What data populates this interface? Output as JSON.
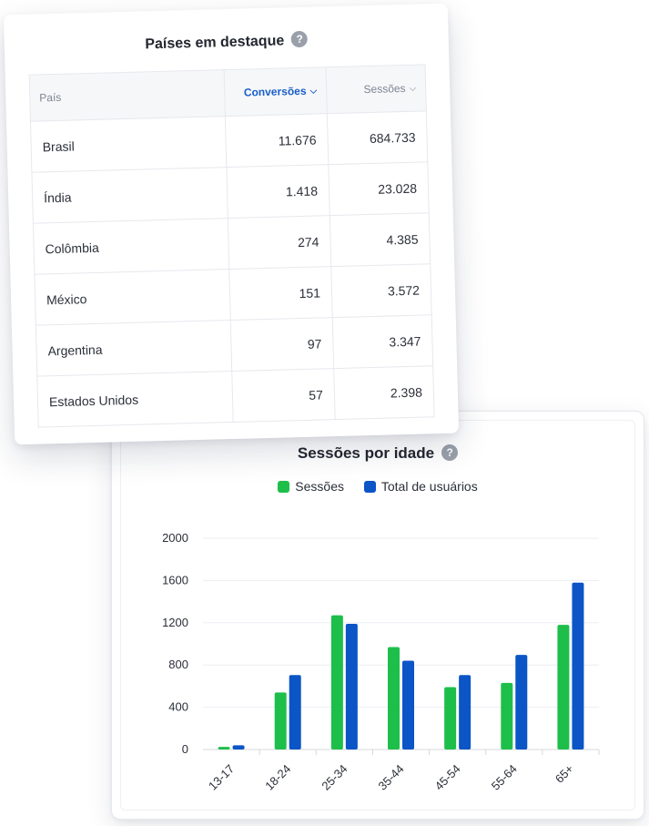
{
  "table_card": {
    "title": "Países em destaque",
    "help_icon": "question-circle-icon",
    "columns": {
      "country": "País",
      "conversions": "Conversões",
      "sessions": "Sessões"
    },
    "rows": [
      {
        "country": "Brasil",
        "conversions": "11.676",
        "sessions": "684.733"
      },
      {
        "country": "Índia",
        "conversions": "1.418",
        "sessions": "23.028"
      },
      {
        "country": "Colômbia",
        "conversions": "274",
        "sessions": "4.385"
      },
      {
        "country": "México",
        "conversions": "151",
        "sessions": "3.572"
      },
      {
        "country": "Argentina",
        "conversions": "97",
        "sessions": "3.347"
      },
      {
        "country": "Estados Unidos",
        "conversions": "57",
        "sessions": "2.398"
      }
    ],
    "sort_icon": "chevron-down-icon",
    "active_sort_color": "#1a5fc9"
  },
  "chart_card": {
    "help_icon": "question-circle-icon"
  },
  "chart_data": {
    "type": "bar",
    "title": "Sessões por idade",
    "xlabel": "",
    "ylabel": "",
    "categories": [
      "13-17",
      "18-24",
      "25-34",
      "35-44",
      "45-54",
      "55-64",
      "65+"
    ],
    "series": [
      {
        "name": "Sessões",
        "color": "#1dbf4a",
        "values": [
          25,
          540,
          1270,
          970,
          590,
          630,
          1180
        ]
      },
      {
        "name": "Total de usuários",
        "color": "#0b55c6",
        "values": [
          40,
          705,
          1190,
          840,
          705,
          895,
          1580
        ]
      }
    ],
    "ylim": [
      0,
      2000
    ],
    "yticks": [
      0,
      400,
      800,
      1200,
      1600,
      2000
    ],
    "grid": true,
    "legend_position": "top-center"
  }
}
